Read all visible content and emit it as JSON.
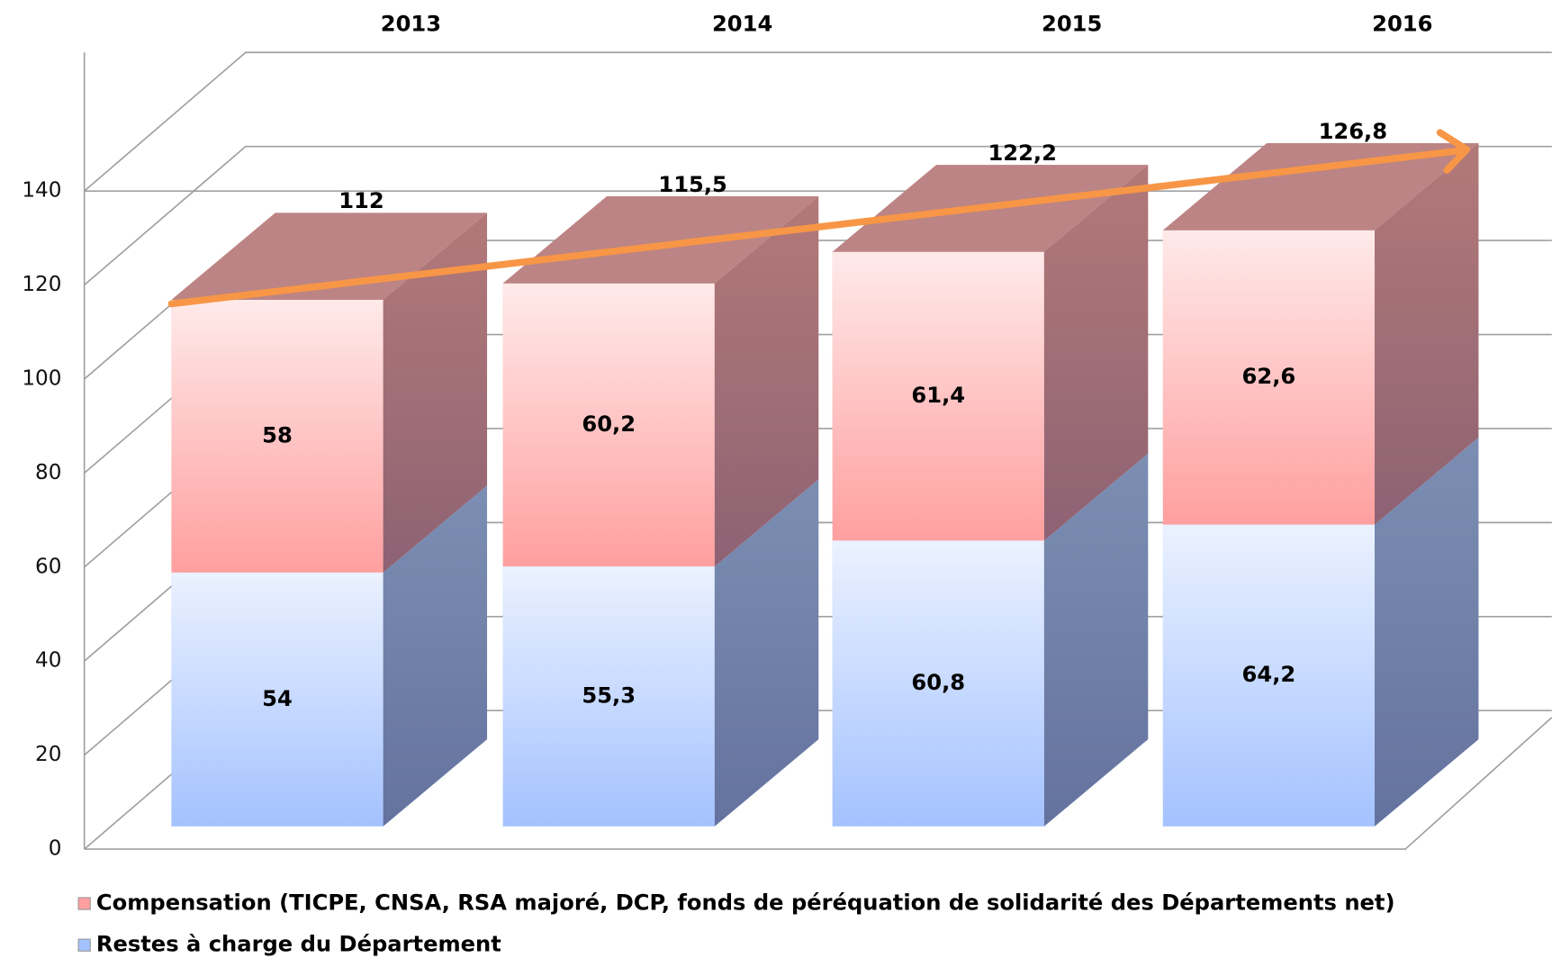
{
  "chart_data": {
    "type": "bar3d_stacked",
    "categories": [
      "2013",
      "2014",
      "2015",
      "2016"
    ],
    "series": [
      {
        "name": "Restes à charge du Département",
        "color": "#a4c2ff",
        "values": [
          54,
          55.3,
          60.8,
          64.2
        ],
        "value_labels": [
          "54",
          "55,3",
          "60,8",
          "64,2"
        ]
      },
      {
        "name": "Compensation (TICPE, CNSA, RSA majoré, DCP, fonds de péréquation de solidarité des Départements net)",
        "color": "#ff9f9f",
        "values": [
          58,
          60.2,
          61.4,
          62.6
        ],
        "value_labels": [
          "58",
          "60,2",
          "61,4",
          "62,6"
        ]
      }
    ],
    "totals": [
      112,
      115.5,
      122.2,
      126.8
    ],
    "total_labels": [
      "112",
      "115,5",
      "122,2",
      "126,8"
    ],
    "ylim": [
      0,
      140
    ],
    "yticks": [
      0,
      20,
      40,
      60,
      80,
      100,
      120,
      140
    ],
    "grid": true
  }
}
